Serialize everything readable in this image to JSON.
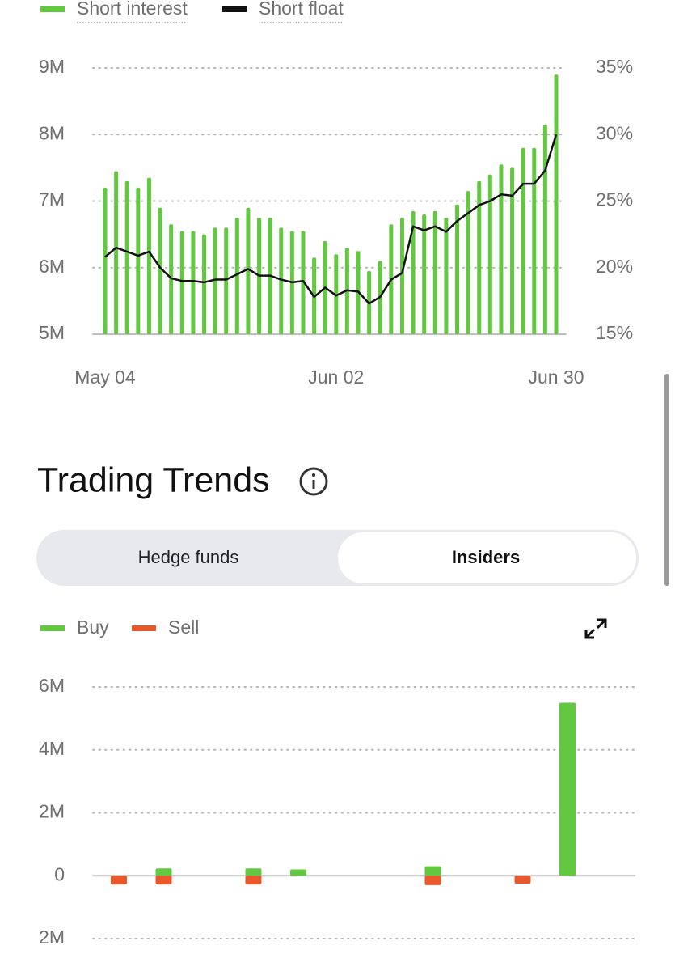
{
  "chart_data": [
    {
      "type": "bar",
      "categories": [
        "May 04",
        null,
        null,
        null,
        null,
        null,
        null,
        null,
        null,
        null,
        null,
        null,
        null,
        null,
        null,
        null,
        null,
        null,
        null,
        null,
        null,
        "Jun 02",
        null,
        null,
        null,
        null,
        null,
        null,
        null,
        null,
        null,
        null,
        null,
        null,
        null,
        null,
        null,
        null,
        null,
        null,
        null,
        "Jun 30"
      ],
      "series": [
        {
          "name": "Short interest",
          "color": "#62c83f",
          "type": "bar",
          "values": [
            7200000,
            7450000,
            7300000,
            7200000,
            7350000,
            6900000,
            6650000,
            6550000,
            6550000,
            6500000,
            6600000,
            6600000,
            6750000,
            6900000,
            6750000,
            6750000,
            6600000,
            6550000,
            6550000,
            6150000,
            6400000,
            6200000,
            6300000,
            6250000,
            5950000,
            6100000,
            6650000,
            6750000,
            6850000,
            6800000,
            6850000,
            6750000,
            6950000,
            7150000,
            7300000,
            7400000,
            7550000,
            7500000,
            7800000,
            7800000,
            8150000,
            8900000
          ]
        },
        {
          "name": "Short float",
          "color": "#111111",
          "type": "line",
          "axis": "y2",
          "values": [
            20.8,
            21.5,
            21.2,
            20.9,
            21.2,
            20.0,
            19.2,
            19.0,
            19.0,
            18.9,
            19.1,
            19.1,
            19.5,
            19.9,
            19.4,
            19.4,
            19.1,
            18.9,
            19.0,
            17.8,
            18.5,
            17.9,
            18.3,
            18.2,
            17.3,
            17.8,
            19.1,
            19.6,
            23.1,
            22.8,
            23.1,
            22.7,
            23.5,
            24.1,
            24.7,
            25.0,
            25.5,
            25.4,
            26.3,
            26.3,
            27.3,
            30.0
          ]
        }
      ],
      "ylim": [
        5000000,
        9000000
      ],
      "yticks": [
        {
          "value": 5000000,
          "label": "5M"
        },
        {
          "value": 6000000,
          "label": "6M"
        },
        {
          "value": 7000000,
          "label": "7M"
        },
        {
          "value": 8000000,
          "label": "8M"
        },
        {
          "value": 9000000,
          "label": "9M"
        }
      ],
      "y2lim": [
        15,
        35
      ],
      "y2ticks": [
        {
          "value": 15,
          "label": "15%"
        },
        {
          "value": 20,
          "label": "20%"
        },
        {
          "value": 25,
          "label": "25%"
        },
        {
          "value": 30,
          "label": "30%"
        },
        {
          "value": 35,
          "label": "35%"
        }
      ],
      "grid": true,
      "legend": "top-left"
    },
    {
      "type": "bar",
      "categories": [
        null,
        null,
        null,
        null,
        null,
        null,
        null,
        null,
        null,
        null,
        null
      ],
      "series": [
        {
          "name": "Buy",
          "color": "#62c83f",
          "values": [
            null,
            230000,
            null,
            230000,
            200000,
            null,
            null,
            300000,
            null,
            null,
            5500000
          ]
        },
        {
          "name": "Sell",
          "color": "#e9582b",
          "values": [
            -280000,
            -280000,
            null,
            -280000,
            null,
            null,
            null,
            -300000,
            null,
            -250000,
            null
          ]
        }
      ],
      "ylim": [
        -2000000,
        6000000
      ],
      "yticks": [
        {
          "value": -2000000,
          "label": "2M"
        },
        0,
        {
          "value": 2000000,
          "label": "2M"
        },
        {
          "value": 4000000,
          "label": "4M"
        },
        {
          "value": 6000000,
          "label": "6M"
        }
      ],
      "grid": true,
      "legend": "top-left"
    }
  ],
  "section": {
    "title": "Trading Trends"
  },
  "tabs": [
    "Hedge funds",
    "Insiders"
  ]
}
